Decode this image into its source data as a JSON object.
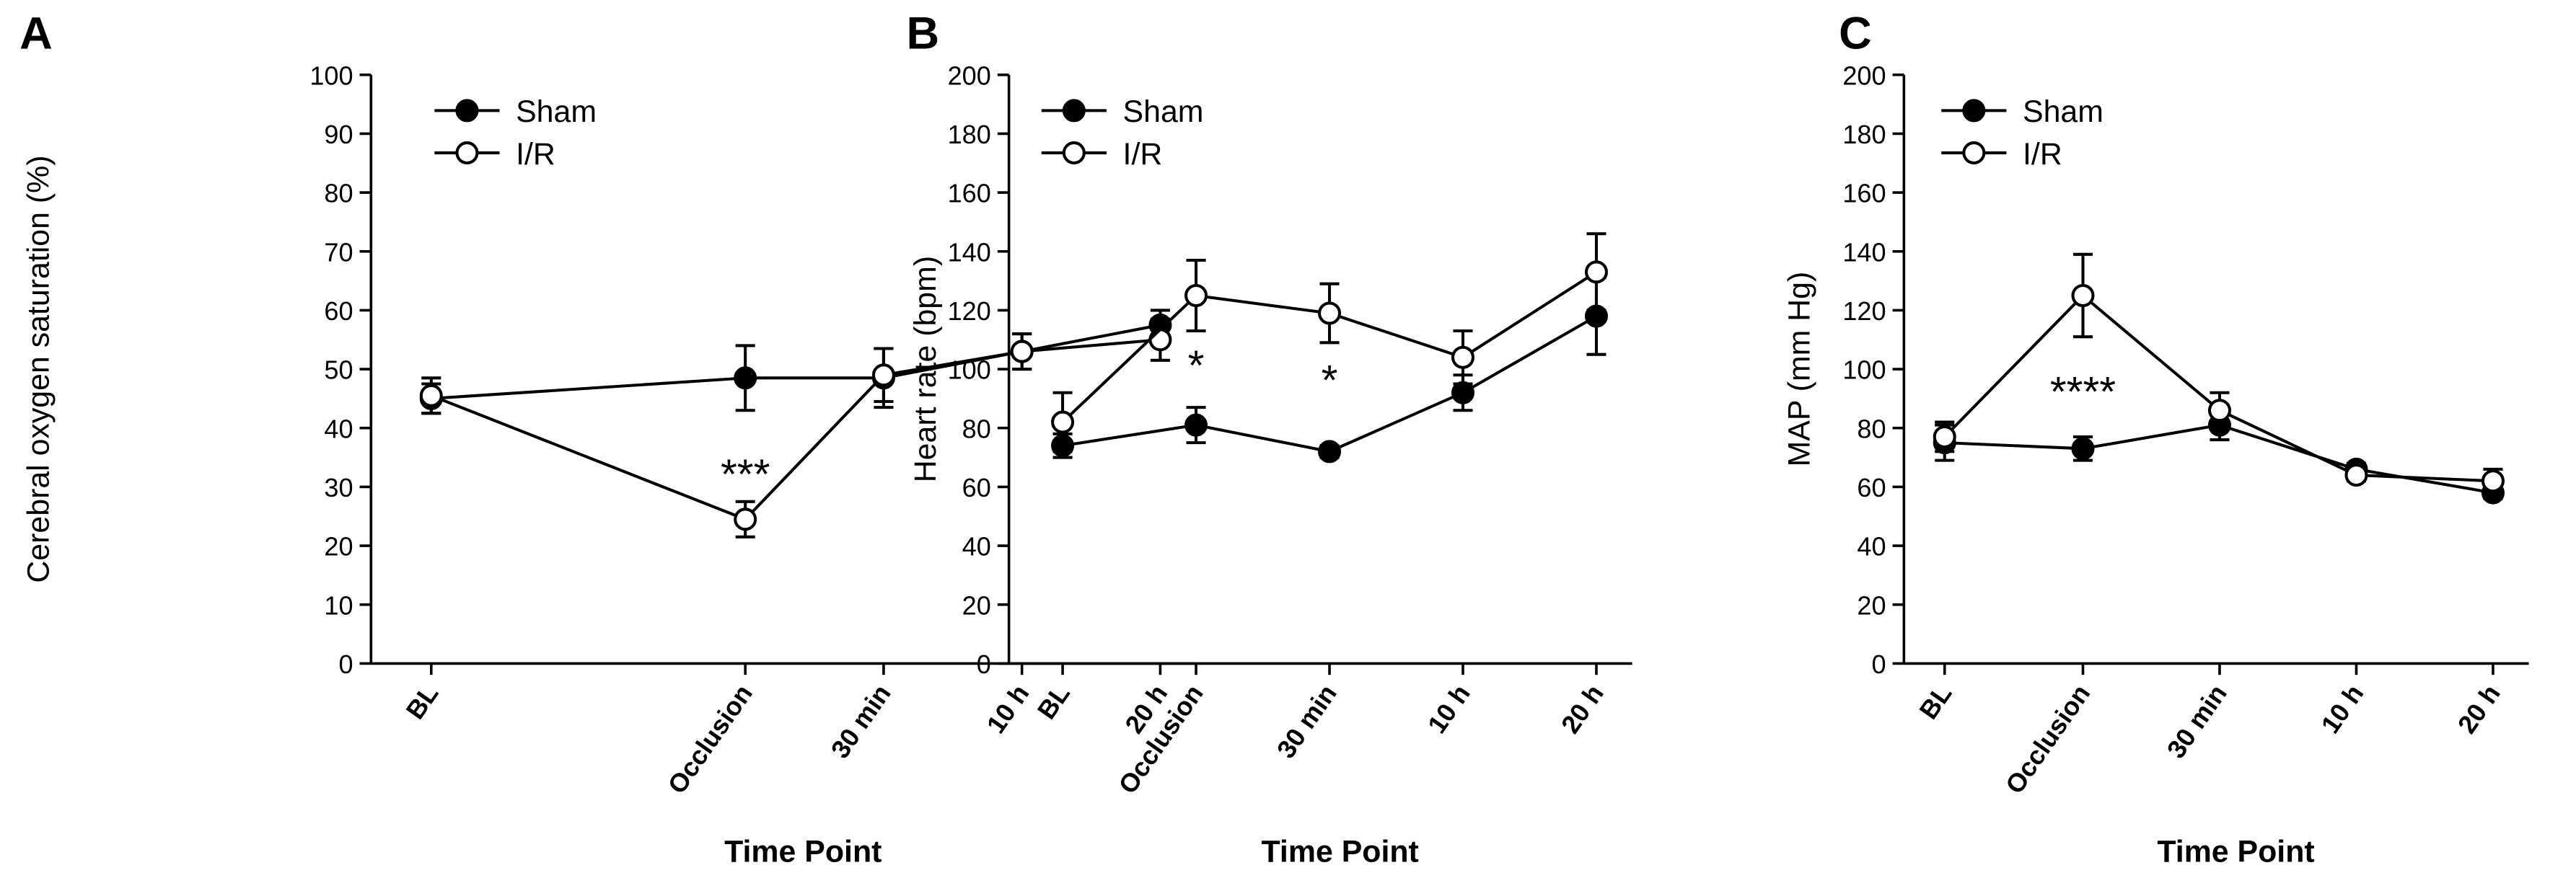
{
  "chart_data": [
    {
      "panel": "A",
      "type": "line",
      "categories": [
        "BL",
        "Occlusion",
        "30 min",
        "10 h",
        "20 h"
      ],
      "xlabel": "Time Point",
      "ylabel": "Cerebral oxygen saturation (%)",
      "ylim": [
        0,
        100
      ],
      "yticks": [
        0,
        10,
        20,
        30,
        40,
        50,
        60,
        70,
        80,
        90,
        100
      ],
      "legend": {
        "placement": "top-left",
        "entries": [
          "Sham",
          "I/R"
        ]
      },
      "series": [
        {
          "name": "Sham",
          "marker": "filled-circle",
          "values": [
            45,
            48.5,
            48.5,
            53,
            57.5
          ],
          "errors": [
            2.5,
            5.5,
            5,
            3,
            2.5
          ]
        },
        {
          "name": "I/R",
          "marker": "open-circle",
          "values": [
            45.5,
            24.5,
            49,
            53,
            55
          ],
          "errors": [
            3,
            3,
            4.5,
            3,
            3.5
          ]
        }
      ],
      "annotations": [
        {
          "category": "Occlusion",
          "y": 33,
          "text": "***"
        }
      ]
    },
    {
      "panel": "B",
      "type": "line",
      "categories": [
        "BL",
        "Occlusion",
        "30 min",
        "10 h",
        "20 h"
      ],
      "xlabel": "Time Point",
      "ylabel": "Heart rate (bpm)",
      "ylim": [
        0,
        200
      ],
      "yticks": [
        0,
        20,
        40,
        60,
        80,
        100,
        120,
        140,
        160,
        180,
        200
      ],
      "legend": {
        "placement": "top-left",
        "entries": [
          "Sham",
          "I/R"
        ]
      },
      "series": [
        {
          "name": "Sham",
          "marker": "filled-circle",
          "values": [
            74,
            81,
            72,
            92,
            118
          ],
          "errors": [
            4,
            6,
            2,
            6,
            13
          ]
        },
        {
          "name": "I/R",
          "marker": "open-circle",
          "values": [
            82,
            125,
            119,
            104,
            133
          ],
          "errors": [
            10,
            12,
            10,
            9,
            13
          ]
        }
      ],
      "annotations": [
        {
          "category": "Occlusion",
          "y": 103,
          "text": "*"
        },
        {
          "category": "30 min",
          "y": 98,
          "text": "*"
        }
      ]
    },
    {
      "panel": "C",
      "type": "line",
      "categories": [
        "BL",
        "Occlusion",
        "30 min",
        "10 h",
        "20 h"
      ],
      "xlabel": "Time Point",
      "ylabel": "MAP (mm Hg)",
      "ylim": [
        0,
        200
      ],
      "yticks": [
        0,
        20,
        40,
        60,
        80,
        100,
        120,
        140,
        160,
        180,
        200
      ],
      "legend": {
        "placement": "top-left",
        "entries": [
          "Sham",
          "I/R"
        ]
      },
      "series": [
        {
          "name": "Sham",
          "marker": "filled-circle",
          "values": [
            75,
            73,
            81,
            66,
            58
          ],
          "errors": [
            6,
            4,
            5,
            2,
            2
          ]
        },
        {
          "name": "I/R",
          "marker": "open-circle",
          "values": [
            77,
            125,
            86,
            64,
            62
          ],
          "errors": [
            5,
            14,
            6,
            2,
            4
          ]
        }
      ],
      "annotations": [
        {
          "category": "Occlusion",
          "y": 94,
          "text": "****"
        }
      ]
    }
  ]
}
